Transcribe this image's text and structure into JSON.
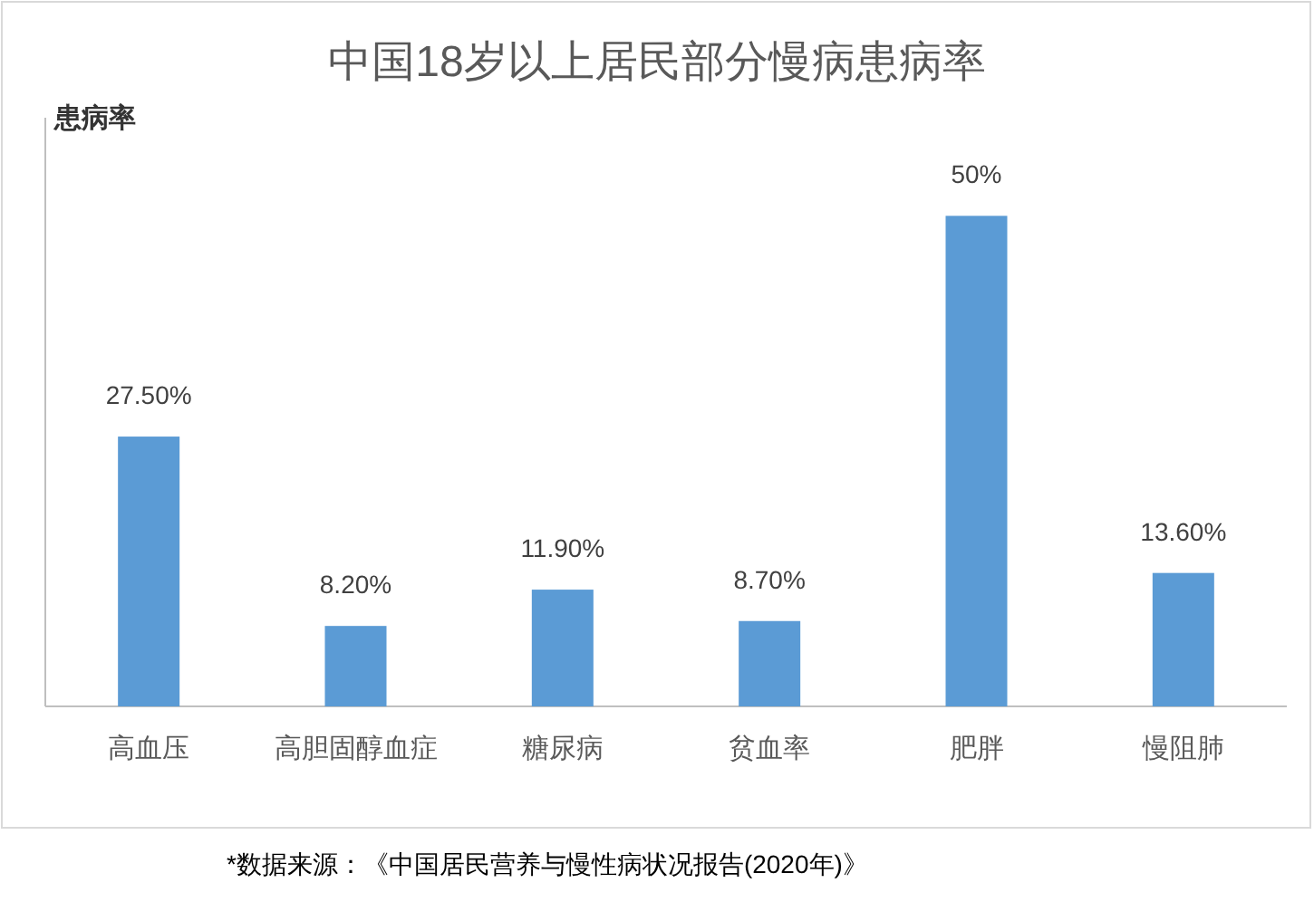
{
  "chart_data": {
    "type": "bar",
    "title": "中国18岁以上居民部分慢病患病率",
    "ylabel": "患病率",
    "categories": [
      "高血压",
      "高胆固醇血症",
      "糖尿病",
      "贫血率",
      "肥胖",
      "慢阻肺"
    ],
    "values": [
      27.5,
      8.2,
      11.9,
      8.7,
      50,
      13.6
    ],
    "value_labels": [
      "27.50%",
      "8.20%",
      "11.90%",
      "8.70%",
      "50%",
      "13.60%"
    ],
    "color": "#5b9bd5",
    "ylim": [
      0,
      60
    ],
    "tick_labels": "x",
    "annotations": [
      "*数据来源：《中国居民营养与慢性病状况报告(2020年)》"
    ]
  }
}
